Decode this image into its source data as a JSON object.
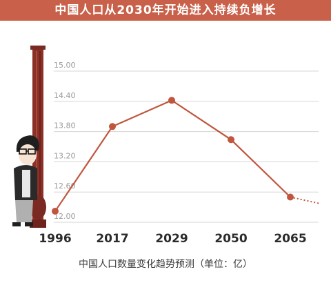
{
  "chart_data": {
    "type": "line",
    "title": "中国人口从2030年开始进入持续负增长",
    "subtitle": "中国人口数量变化趋势预测（单位：亿）",
    "categories": [
      "1996",
      "2017",
      "2029",
      "2050",
      "2065"
    ],
    "series": [
      {
        "values": [
          12.22,
          13.9,
          14.42,
          13.64,
          12.5
        ]
      }
    ],
    "y_ticks": [
      "12.00",
      "12.60",
      "13.20",
      "13.80",
      "14.40",
      "15.00"
    ],
    "ylim": [
      12.0,
      15.0
    ],
    "grid": true,
    "trend_after_last": "dotted",
    "colors": {
      "accent": "#c8604a",
      "line": "#c0563e",
      "grid": "#d6d6d6",
      "tick": "#9a9a9a"
    }
  }
}
